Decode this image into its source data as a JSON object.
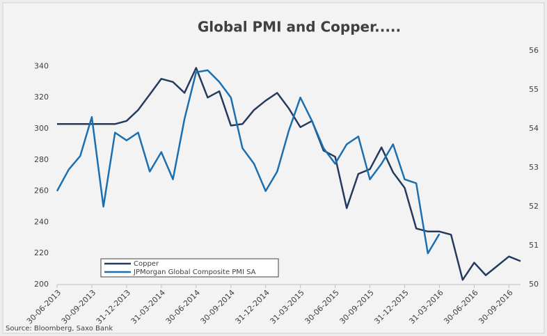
{
  "chart_data": {
    "type": "line",
    "title": "Global PMI and Copper.....",
    "source": "Source: Bloomberg, Saxo Bank",
    "categories": [
      "30-06-2013",
      null,
      null,
      "30-09-2013",
      null,
      null,
      "31-12-2013",
      null,
      null,
      "31-03-2014",
      null,
      null,
      "30-06-2014",
      null,
      null,
      "30-09-2014",
      null,
      null,
      "31-12-2014",
      null,
      null,
      "31-03-2015",
      null,
      null,
      "30-06-2015",
      null,
      null,
      "30-09-2015",
      null,
      null,
      "31-12-2015",
      null,
      null,
      "31-03-2016",
      null,
      null,
      "30-06-2016",
      null,
      null,
      "30-09-2016",
      null
    ],
    "series": [
      {
        "name": "Copper",
        "color": "#243a5e",
        "axis": "y",
        "values": [
          303,
          303,
          303,
          303,
          303,
          303,
          305,
          312,
          322,
          332,
          330,
          323,
          339,
          320,
          324,
          302,
          303,
          312,
          318,
          323,
          313,
          301,
          305,
          286,
          282,
          249,
          271,
          274,
          288,
          272,
          262,
          236,
          234,
          234,
          232,
          203,
          214,
          206,
          212,
          218,
          215
        ]
      },
      {
        "name": "JPMorgan Global Composite PMI SA",
        "color": "#1b6fb0",
        "axis": "y2",
        "values": [
          52.4,
          52.95,
          53.3,
          54.3,
          52.0,
          53.9,
          53.7,
          53.9,
          52.9,
          53.4,
          52.7,
          54.25,
          55.45,
          55.5,
          55.2,
          54.8,
          53.5,
          53.1,
          52.4,
          52.9,
          53.95,
          54.8,
          54.2,
          53.5,
          53.1,
          53.6,
          53.8,
          52.7,
          53.1,
          53.6,
          52.7,
          52.6,
          50.8,
          51.3,
          null,
          null,
          null,
          null,
          null,
          null,
          null
        ]
      }
    ],
    "ylim": [
      200,
      350
    ],
    "yticks": [
      200,
      220,
      240,
      260,
      280,
      300,
      320,
      340
    ],
    "y2lim": [
      50,
      56
    ],
    "y2ticks": [
      50,
      51,
      52,
      53,
      54,
      55,
      56
    ]
  }
}
